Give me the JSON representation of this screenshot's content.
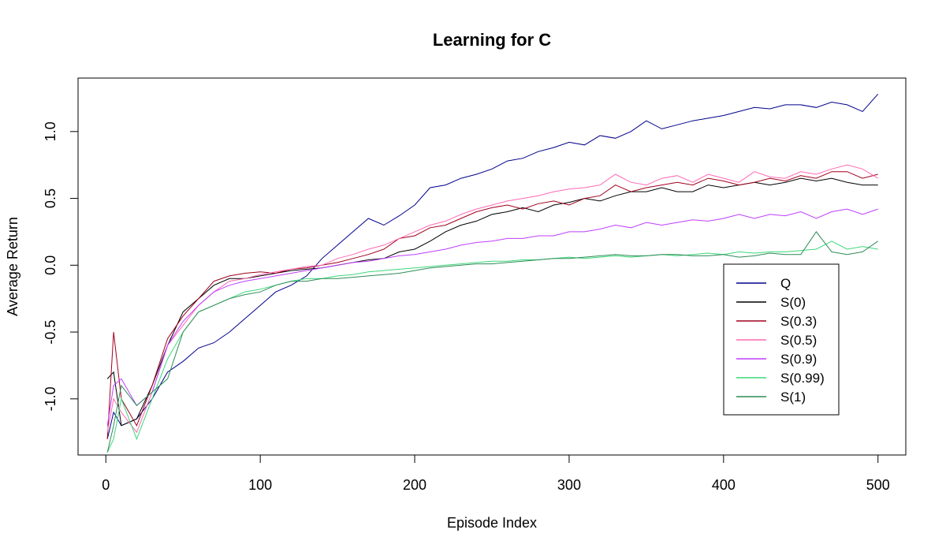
{
  "chart_data": {
    "type": "line",
    "title": "Learning for C",
    "xlabel": "Episode Index",
    "ylabel": "Average Return",
    "xlim": [
      -18,
      518
    ],
    "ylim": [
      -1.42,
      1.4
    ],
    "xticks": [
      0,
      100,
      200,
      300,
      400,
      500
    ],
    "yticks": [
      -1.0,
      -0.5,
      0.0,
      0.5,
      1.0
    ],
    "ytick_labels": [
      "-1.0",
      "-0.5",
      "0.0",
      "0.5",
      "1.0"
    ],
    "grid": false,
    "legend_position": "right",
    "series": [
      {
        "name": "Q",
        "color": "#00008B",
        "x": [
          1,
          5,
          10,
          20,
          30,
          40,
          50,
          60,
          70,
          80,
          90,
          100,
          110,
          120,
          130,
          140,
          150,
          160,
          170,
          180,
          190,
          200,
          210,
          220,
          230,
          240,
          250,
          260,
          270,
          280,
          290,
          300,
          310,
          320,
          330,
          340,
          350,
          360,
          370,
          380,
          390,
          400,
          410,
          420,
          430,
          440,
          450,
          460,
          470,
          480,
          490,
          500
        ],
        "y": [
          -1.3,
          -1.1,
          -1.2,
          -1.15,
          -1.0,
          -0.8,
          -0.72,
          -0.62,
          -0.58,
          -0.5,
          -0.4,
          -0.3,
          -0.2,
          -0.15,
          -0.08,
          0.05,
          0.15,
          0.25,
          0.35,
          0.3,
          0.37,
          0.45,
          0.58,
          0.6,
          0.65,
          0.68,
          0.72,
          0.78,
          0.8,
          0.85,
          0.88,
          0.92,
          0.9,
          0.97,
          0.95,
          1.0,
          1.08,
          1.02,
          1.05,
          1.08,
          1.1,
          1.12,
          1.15,
          1.18,
          1.17,
          1.2,
          1.2,
          1.18,
          1.22,
          1.2,
          1.15,
          1.28
        ]
      },
      {
        "name": "S(0)",
        "color": "#000000",
        "x": [
          1,
          5,
          10,
          20,
          30,
          40,
          50,
          60,
          70,
          80,
          90,
          100,
          110,
          120,
          130,
          140,
          150,
          160,
          170,
          180,
          190,
          200,
          210,
          220,
          230,
          240,
          250,
          260,
          270,
          280,
          290,
          300,
          310,
          320,
          330,
          340,
          350,
          360,
          370,
          380,
          390,
          400,
          410,
          420,
          430,
          440,
          450,
          460,
          470,
          480,
          490,
          500
        ],
        "y": [
          -0.85,
          -0.8,
          -1.2,
          -1.15,
          -0.9,
          -0.6,
          -0.35,
          -0.25,
          -0.15,
          -0.1,
          -0.1,
          -0.08,
          -0.06,
          -0.04,
          -0.03,
          -0.02,
          0.0,
          0.02,
          0.04,
          0.05,
          0.1,
          0.12,
          0.18,
          0.25,
          0.3,
          0.33,
          0.38,
          0.4,
          0.43,
          0.4,
          0.45,
          0.47,
          0.5,
          0.48,
          0.52,
          0.55,
          0.55,
          0.58,
          0.55,
          0.55,
          0.6,
          0.58,
          0.6,
          0.62,
          0.6,
          0.62,
          0.65,
          0.63,
          0.65,
          0.62,
          0.6,
          0.6
        ]
      },
      {
        "name": "S(0.3)",
        "color": "#A0001E",
        "x": [
          1,
          5,
          10,
          20,
          30,
          40,
          50,
          60,
          70,
          80,
          90,
          100,
          110,
          120,
          130,
          140,
          150,
          160,
          170,
          180,
          190,
          200,
          210,
          220,
          230,
          240,
          250,
          260,
          270,
          280,
          290,
          300,
          310,
          320,
          330,
          340,
          350,
          360,
          370,
          380,
          390,
          400,
          410,
          420,
          430,
          440,
          450,
          460,
          470,
          480,
          490,
          500
        ],
        "y": [
          -1.3,
          -0.5,
          -1.0,
          -1.2,
          -0.9,
          -0.55,
          -0.38,
          -0.25,
          -0.12,
          -0.08,
          -0.06,
          -0.05,
          -0.06,
          -0.03,
          -0.02,
          0.0,
          0.02,
          0.05,
          0.08,
          0.12,
          0.2,
          0.22,
          0.28,
          0.3,
          0.35,
          0.4,
          0.43,
          0.45,
          0.42,
          0.46,
          0.48,
          0.45,
          0.5,
          0.52,
          0.6,
          0.55,
          0.58,
          0.6,
          0.62,
          0.6,
          0.65,
          0.63,
          0.6,
          0.62,
          0.65,
          0.63,
          0.67,
          0.65,
          0.7,
          0.7,
          0.65,
          0.68
        ]
      },
      {
        "name": "S(0.5)",
        "color": "#FF69B4",
        "x": [
          1,
          5,
          10,
          20,
          30,
          40,
          50,
          60,
          70,
          80,
          90,
          100,
          110,
          120,
          130,
          140,
          150,
          160,
          170,
          180,
          190,
          200,
          210,
          220,
          230,
          240,
          250,
          260,
          270,
          280,
          290,
          300,
          310,
          320,
          330,
          340,
          350,
          360,
          370,
          380,
          390,
          400,
          410,
          420,
          430,
          440,
          450,
          460,
          470,
          480,
          490,
          500
        ],
        "y": [
          -1.25,
          -1.0,
          -1.1,
          -1.25,
          -0.95,
          -0.6,
          -0.45,
          -0.3,
          -0.2,
          -0.12,
          -0.1,
          -0.07,
          -0.05,
          -0.03,
          -0.01,
          0.0,
          0.05,
          0.08,
          0.12,
          0.15,
          0.2,
          0.25,
          0.3,
          0.33,
          0.38,
          0.42,
          0.45,
          0.48,
          0.5,
          0.52,
          0.55,
          0.57,
          0.58,
          0.6,
          0.68,
          0.62,
          0.6,
          0.65,
          0.67,
          0.62,
          0.68,
          0.65,
          0.62,
          0.7,
          0.66,
          0.65,
          0.7,
          0.68,
          0.72,
          0.75,
          0.72,
          0.65
        ]
      },
      {
        "name": "S(0.9)",
        "color": "#BF3EFF",
        "x": [
          1,
          5,
          10,
          20,
          30,
          40,
          50,
          60,
          70,
          80,
          90,
          100,
          110,
          120,
          130,
          140,
          150,
          160,
          170,
          180,
          190,
          200,
          210,
          220,
          230,
          240,
          250,
          260,
          270,
          280,
          290,
          300,
          310,
          320,
          330,
          340,
          350,
          360,
          370,
          380,
          390,
          400,
          410,
          420,
          430,
          440,
          450,
          460,
          470,
          480,
          490,
          500
        ],
        "y": [
          -1.2,
          -0.9,
          -0.85,
          -1.05,
          -0.95,
          -0.6,
          -0.42,
          -0.3,
          -0.2,
          -0.15,
          -0.12,
          -0.1,
          -0.08,
          -0.06,
          -0.04,
          -0.02,
          0.0,
          0.02,
          0.03,
          0.05,
          0.07,
          0.08,
          0.1,
          0.12,
          0.15,
          0.17,
          0.18,
          0.2,
          0.2,
          0.22,
          0.22,
          0.25,
          0.25,
          0.27,
          0.3,
          0.28,
          0.32,
          0.3,
          0.32,
          0.34,
          0.33,
          0.35,
          0.38,
          0.35,
          0.38,
          0.37,
          0.4,
          0.35,
          0.4,
          0.42,
          0.38,
          0.42
        ]
      },
      {
        "name": "S(0.99)",
        "color": "#3CD77A",
        "x": [
          1,
          5,
          10,
          20,
          30,
          40,
          50,
          60,
          70,
          80,
          90,
          100,
          110,
          120,
          130,
          140,
          150,
          160,
          170,
          180,
          190,
          200,
          210,
          220,
          230,
          240,
          250,
          260,
          270,
          280,
          290,
          300,
          310,
          320,
          330,
          340,
          350,
          360,
          370,
          380,
          390,
          400,
          410,
          420,
          430,
          440,
          450,
          460,
          470,
          480,
          490,
          500
        ],
        "y": [
          -1.4,
          -1.3,
          -1.0,
          -1.3,
          -1.0,
          -0.7,
          -0.5,
          -0.35,
          -0.3,
          -0.25,
          -0.2,
          -0.18,
          -0.15,
          -0.12,
          -0.1,
          -0.1,
          -0.08,
          -0.07,
          -0.05,
          -0.04,
          -0.03,
          -0.02,
          -0.01,
          0.0,
          0.01,
          0.02,
          0.03,
          0.03,
          0.04,
          0.04,
          0.05,
          0.06,
          0.05,
          0.06,
          0.07,
          0.06,
          0.07,
          0.08,
          0.07,
          0.08,
          0.09,
          0.08,
          0.1,
          0.09,
          0.1,
          0.1,
          0.11,
          0.12,
          0.18,
          0.12,
          0.14,
          0.12
        ]
      },
      {
        "name": "S(1)",
        "color": "#2E8B57",
        "x": [
          1,
          5,
          10,
          20,
          30,
          40,
          50,
          60,
          70,
          80,
          90,
          100,
          110,
          120,
          130,
          140,
          150,
          160,
          170,
          180,
          190,
          200,
          210,
          220,
          230,
          240,
          250,
          260,
          270,
          280,
          290,
          300,
          310,
          320,
          330,
          340,
          350,
          360,
          370,
          380,
          390,
          400,
          410,
          420,
          430,
          440,
          450,
          460,
          470,
          480,
          490,
          500
        ],
        "y": [
          -1.4,
          -1.2,
          -0.9,
          -1.05,
          -0.95,
          -0.85,
          -0.5,
          -0.35,
          -0.3,
          -0.25,
          -0.22,
          -0.2,
          -0.15,
          -0.12,
          -0.12,
          -0.1,
          -0.1,
          -0.09,
          -0.08,
          -0.07,
          -0.06,
          -0.04,
          -0.02,
          -0.01,
          0.0,
          0.01,
          0.01,
          0.02,
          0.03,
          0.04,
          0.05,
          0.05,
          0.06,
          0.07,
          0.08,
          0.07,
          0.07,
          0.08,
          0.08,
          0.07,
          0.07,
          0.08,
          0.06,
          0.07,
          0.09,
          0.08,
          0.08,
          0.25,
          0.1,
          0.08,
          0.1,
          0.18
        ]
      }
    ]
  }
}
